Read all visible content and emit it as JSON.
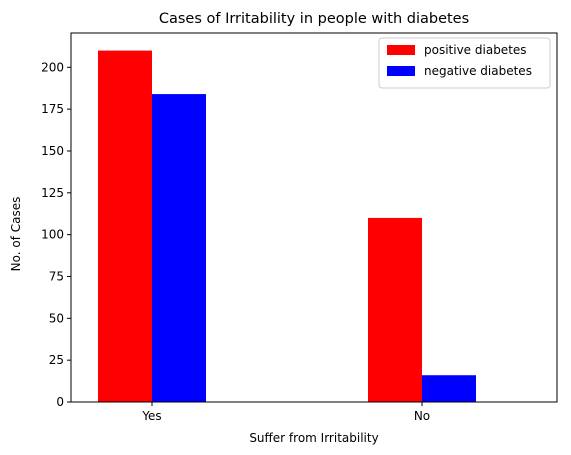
{
  "chart_data": {
    "type": "bar",
    "title": "Cases of Irritability in people with diabetes",
    "xlabel": "Suffer from Irritability",
    "ylabel": "No. of Cases",
    "categories": [
      "Yes",
      "No"
    ],
    "series": [
      {
        "name": "positive diabetes",
        "color": "#ff0000",
        "values": [
          210,
          110
        ]
      },
      {
        "name": "negative diabetes",
        "color": "#0000ff",
        "values": [
          184,
          16
        ]
      }
    ],
    "ylim": [
      0,
      220.5
    ],
    "yticks": [
      0,
      25,
      50,
      75,
      100,
      125,
      150,
      175,
      200
    ],
    "grid": false,
    "legend": "top-right"
  }
}
